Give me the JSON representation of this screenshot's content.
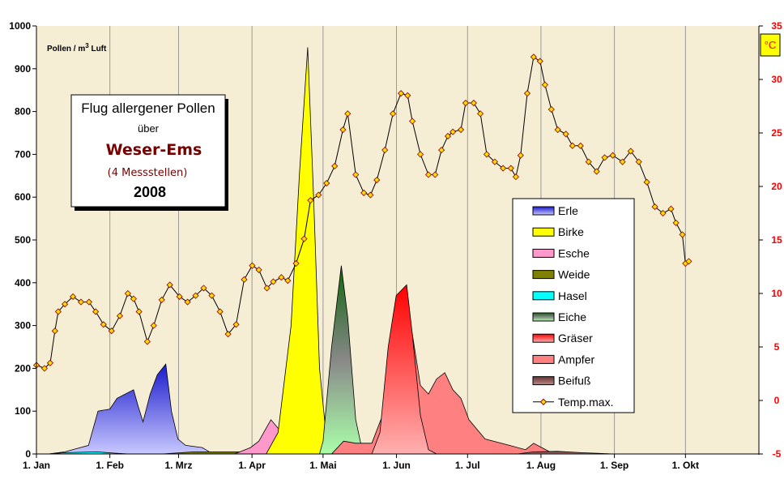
{
  "chart_data": {
    "type": "area",
    "title_box": {
      "line1": "Flug allergener Pollen",
      "line2": "über",
      "line3": "Weser-Ems",
      "line4": "(4 Messstellen)",
      "line5": "2008"
    },
    "ylabel": "Pollen / m³ Luft",
    "ylabel_parts": {
      "pre": "Pollen / m",
      "sup": "3",
      "post": " Luft"
    },
    "y2label": "°C",
    "ylim": [
      0,
      1000
    ],
    "y2lim": [
      -5,
      35
    ],
    "yticks": [
      "0",
      "100",
      "200",
      "300",
      "400",
      "500",
      "600",
      "700",
      "800",
      "900",
      "1000"
    ],
    "y2ticks": [
      "-5",
      "0",
      "5",
      "10",
      "15",
      "20",
      "25",
      "30",
      "35"
    ],
    "xlim_days": [
      0,
      305
    ],
    "xticks": [
      {
        "label": "1. Jan",
        "day": 0
      },
      {
        "label": "1. Feb",
        "day": 31
      },
      {
        "label": "1. Mrz",
        "day": 60
      },
      {
        "label": "1. Apr",
        "day": 91
      },
      {
        "label": "1. Mai",
        "day": 121
      },
      {
        "label": "1. Jun",
        "day": 152
      },
      {
        "label": "1. Jul",
        "day": 182
      },
      {
        "label": "1. Aug",
        "day": 213
      },
      {
        "label": "1. Sep",
        "day": 244
      },
      {
        "label": "1. Okt",
        "day": 274
      }
    ],
    "series": [
      {
        "name": "Erle",
        "color": "#3333dd",
        "gradient": true,
        "points": [
          [
            5,
            0
          ],
          [
            12,
            5
          ],
          [
            22,
            20
          ],
          [
            26,
            100
          ],
          [
            31,
            105
          ],
          [
            34,
            130
          ],
          [
            37.5,
            140
          ],
          [
            41,
            150
          ],
          [
            43,
            110
          ],
          [
            45,
            75
          ],
          [
            48,
            140
          ],
          [
            51,
            185
          ],
          [
            54.6,
            210
          ],
          [
            57,
            100
          ],
          [
            59.7,
            35
          ],
          [
            63,
            20
          ],
          [
            70,
            15
          ],
          [
            73,
            5
          ],
          [
            77,
            0
          ]
        ]
      },
      {
        "name": "Weide",
        "color": "#808000",
        "gradient": false,
        "points": [
          [
            53,
            0
          ],
          [
            66.5,
            5
          ],
          [
            87,
            5
          ],
          [
            107.5,
            8
          ],
          [
            121,
            3
          ],
          [
            128,
            0
          ]
        ]
      },
      {
        "name": "Hasel",
        "color": "#00ffff",
        "gradient": false,
        "points": [
          [
            5,
            0
          ],
          [
            12,
            3
          ],
          [
            25.6,
            5
          ],
          [
            32.4,
            2
          ],
          [
            39,
            0
          ]
        ]
      },
      {
        "name": "Esche",
        "color": "#ff99cc",
        "gradient": false,
        "points": [
          [
            83.6,
            0
          ],
          [
            90.4,
            15
          ],
          [
            93.9,
            30
          ],
          [
            99,
            80
          ],
          [
            102,
            60
          ],
          [
            107.5,
            55
          ],
          [
            114.5,
            55
          ],
          [
            118.4,
            20
          ],
          [
            121,
            0
          ]
        ]
      },
      {
        "name": "Birke",
        "color": "#ffff00",
        "gradient": false,
        "points": [
          [
            97,
            0
          ],
          [
            102,
            50
          ],
          [
            107.5,
            300
          ],
          [
            111,
            650
          ],
          [
            114.5,
            950
          ],
          [
            117,
            600
          ],
          [
            119.5,
            200
          ],
          [
            122,
            60
          ],
          [
            124.6,
            10
          ],
          [
            128,
            0
          ]
        ]
      },
      {
        "name": "Eiche",
        "color": "#228822",
        "gradient": true,
        "points": [
          [
            119.5,
            0
          ],
          [
            121,
            30
          ],
          [
            124.6,
            250
          ],
          [
            128.7,
            440
          ],
          [
            131.4,
            320
          ],
          [
            134.8,
            80
          ],
          [
            137.5,
            10
          ],
          [
            140,
            0
          ]
        ]
      },
      {
        "name": "Ampfer",
        "color": "#ff8080",
        "gradient": false,
        "points": [
          [
            124.6,
            0
          ],
          [
            129.7,
            30
          ],
          [
            134.8,
            25
          ],
          [
            141.6,
            25
          ],
          [
            146.8,
            100
          ],
          [
            151.9,
            300
          ],
          [
            155.3,
            370
          ],
          [
            158.7,
            280
          ],
          [
            162.1,
            160
          ],
          [
            165.5,
            140
          ],
          [
            168.9,
            175
          ],
          [
            172.4,
            190
          ],
          [
            175.8,
            150
          ],
          [
            179.2,
            130
          ],
          [
            182.6,
            80
          ],
          [
            189.4,
            35
          ],
          [
            199.7,
            20
          ],
          [
            206.5,
            10
          ],
          [
            209.9,
            25
          ],
          [
            213.3,
            15
          ],
          [
            216.7,
            5
          ],
          [
            223.5,
            0
          ]
        ]
      },
      {
        "name": "Gräser",
        "color": "#ff0000",
        "gradient": true,
        "points": [
          [
            141.6,
            0
          ],
          [
            145,
            50
          ],
          [
            148.5,
            250
          ],
          [
            151.9,
            370
          ],
          [
            156.3,
            395
          ],
          [
            158.7,
            280
          ],
          [
            162.1,
            90
          ],
          [
            165.5,
            10
          ],
          [
            168.9,
            0
          ]
        ]
      },
      {
        "name": "Beifuß",
        "color": "#884444",
        "gradient": true,
        "points": [
          [
            203,
            0
          ],
          [
            210,
            5
          ],
          [
            220,
            6
          ],
          [
            230,
            3
          ],
          [
            244,
            0
          ]
        ]
      }
    ],
    "temperature": {
      "name": "Temp.max.",
      "axis": "right",
      "points": [
        [
          0,
          3.3
        ],
        [
          3.4,
          3.0
        ],
        [
          5.8,
          3.5
        ],
        [
          7.8,
          6.5
        ],
        [
          9.2,
          8.3
        ],
        [
          12,
          9.0
        ],
        [
          15.4,
          9.7
        ],
        [
          18.8,
          9.2
        ],
        [
          22.2,
          9.2
        ],
        [
          25,
          8.3
        ],
        [
          28.3,
          7.1
        ],
        [
          31.7,
          6.5
        ],
        [
          35.2,
          7.9
        ],
        [
          38.6,
          10.0
        ],
        [
          41,
          9.5
        ],
        [
          43.3,
          8.3
        ],
        [
          46.8,
          5.5
        ],
        [
          49.5,
          7.0
        ],
        [
          52.9,
          9.4
        ],
        [
          56.3,
          10.8
        ],
        [
          60.4,
          9.7
        ],
        [
          63.8,
          9.2
        ],
        [
          67.2,
          9.8
        ],
        [
          70.6,
          10.5
        ],
        [
          74,
          9.8
        ],
        [
          77.5,
          8.3
        ],
        [
          80.9,
          6.2
        ],
        [
          84.3,
          7.1
        ],
        [
          87.7,
          11.3
        ],
        [
          91.1,
          12.6
        ],
        [
          93.9,
          12.2
        ],
        [
          97.3,
          10.5
        ],
        [
          100,
          11.1
        ],
        [
          103.4,
          11.5
        ],
        [
          106.1,
          11.2
        ],
        [
          109.6,
          12.8
        ],
        [
          113,
          15.1
        ],
        [
          115.7,
          18.7
        ],
        [
          119.1,
          19.2
        ],
        [
          122.5,
          20.3
        ],
        [
          125.9,
          21.9
        ],
        [
          129.4,
          25.3
        ],
        [
          131.4,
          26.8
        ],
        [
          134.8,
          21.1
        ],
        [
          138.2,
          19.4
        ],
        [
          141,
          19.2
        ],
        [
          143.7,
          20.6
        ],
        [
          147.1,
          23.4
        ],
        [
          150.5,
          26.8
        ],
        [
          153.9,
          28.7
        ],
        [
          156.7,
          28.5
        ],
        [
          158.7,
          26.1
        ],
        [
          162.1,
          23.0
        ],
        [
          165.5,
          21.1
        ],
        [
          168.3,
          21.1
        ],
        [
          171,
          23.4
        ],
        [
          173.7,
          24.7
        ],
        [
          175.8,
          25.1
        ],
        [
          179.2,
          25.3
        ],
        [
          181.2,
          27.8
        ],
        [
          184.6,
          27.8
        ],
        [
          187.4,
          26.8
        ],
        [
          190.1,
          23.0
        ],
        [
          193.5,
          22.3
        ],
        [
          197,
          21.7
        ],
        [
          200.3,
          21.7
        ],
        [
          202.4,
          20.9
        ],
        [
          204.4,
          22.9
        ],
        [
          207.2,
          28.7
        ],
        [
          209.9,
          32.1
        ],
        [
          212.6,
          31.7
        ],
        [
          214.7,
          29.5
        ],
        [
          217.4,
          27.2
        ],
        [
          220.1,
          25.3
        ],
        [
          223.5,
          24.9
        ],
        [
          226.3,
          23.8
        ],
        [
          229.7,
          23.8
        ],
        [
          233.1,
          22.3
        ],
        [
          236.5,
          21.4
        ],
        [
          239.9,
          22.7
        ],
        [
          243.3,
          22.9
        ],
        [
          247.4,
          22.3
        ],
        [
          250.9,
          23.3
        ],
        [
          254.3,
          22.3
        ],
        [
          257.7,
          20.4
        ],
        [
          261.1,
          18.1
        ],
        [
          264.5,
          17.5
        ],
        [
          267.9,
          17.9
        ],
        [
          270,
          16.6
        ],
        [
          272.7,
          15.5
        ],
        [
          274,
          12.8
        ],
        [
          275.4,
          13.0
        ]
      ]
    },
    "legend_position": "right",
    "legend_order": [
      "Erle",
      "Birke",
      "Esche",
      "Weide",
      "Hasel",
      "Eiche",
      "Gräser",
      "Ampfer",
      "Beifuß",
      "Temp.max."
    ]
  }
}
